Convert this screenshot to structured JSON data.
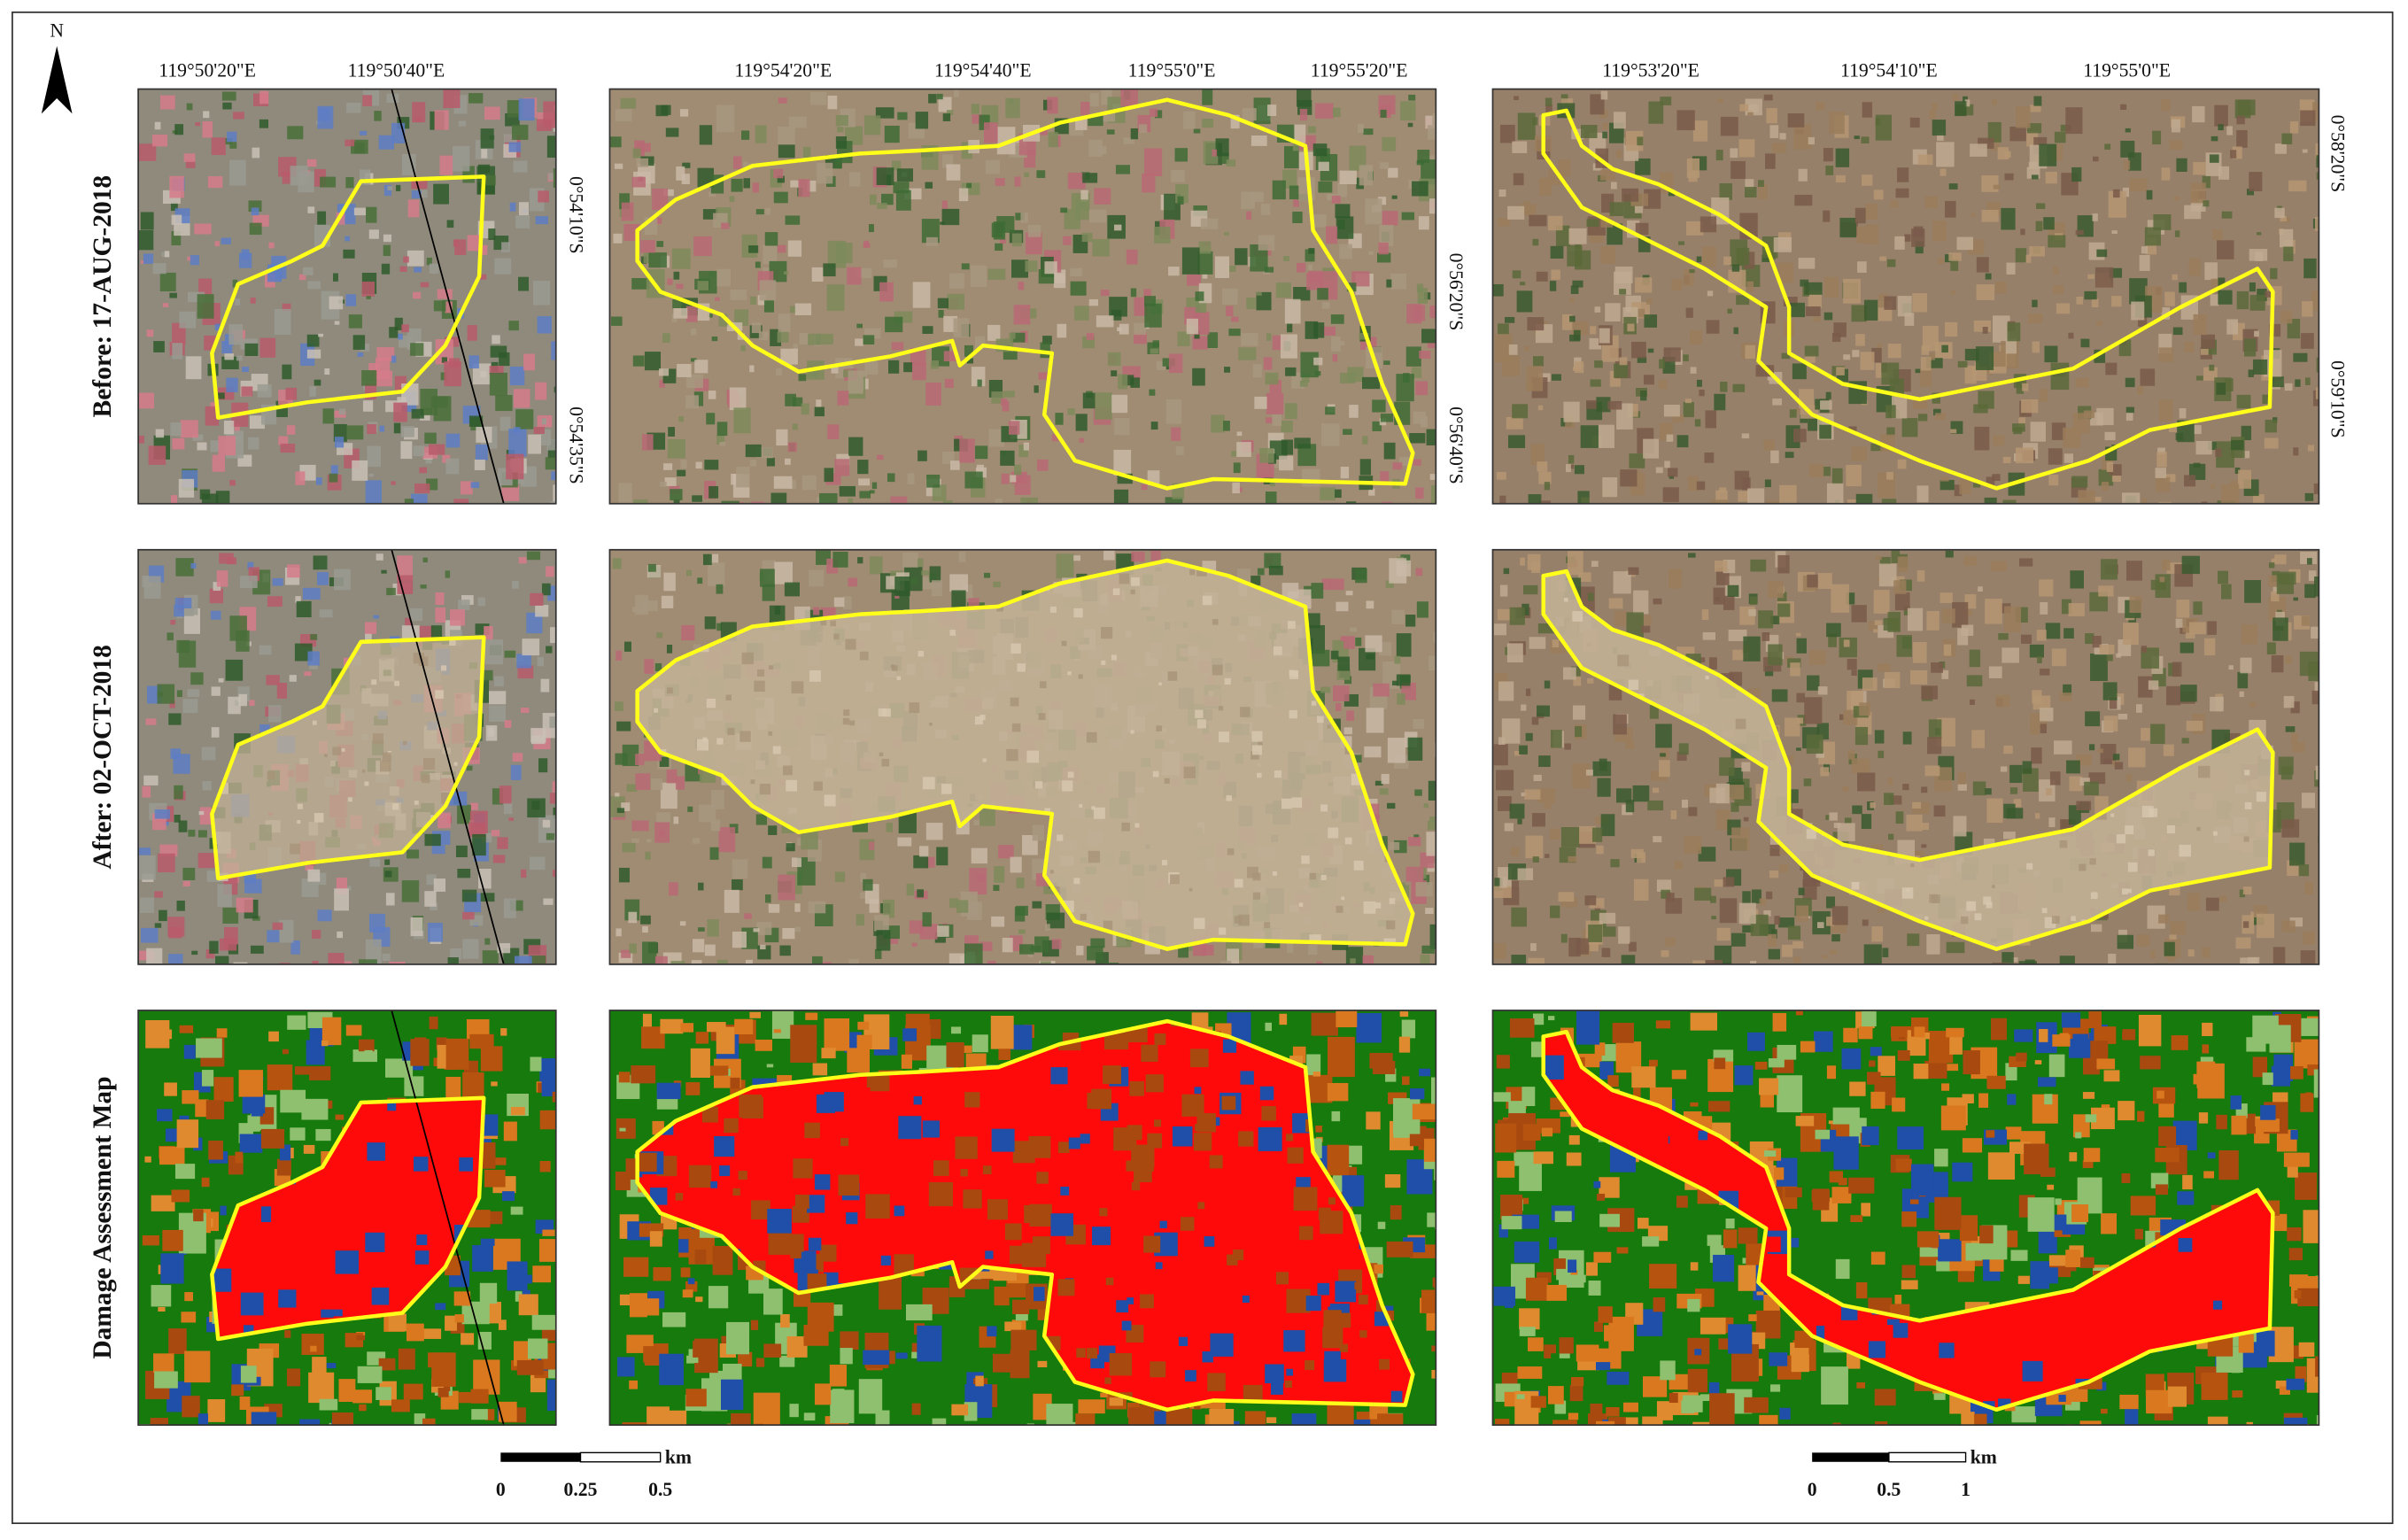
{
  "north_arrow": "N",
  "row_labels": [
    "Before: 17-AUG-2018",
    "After: 02-OCT-2018",
    "Damage Assessment Map"
  ],
  "panels": [
    {
      "lon_labels": [
        "119°50'20\"E",
        "119°50'40\"E"
      ],
      "lat_labels": [
        "0°54'10\"S",
        "0°54'35\"S"
      ]
    },
    {
      "lon_labels": [
        "119°54'20\"E",
        "119°54'40\"E",
        "119°55'0\"E",
        "119°55'20\"E"
      ],
      "lat_labels": [
        "0°56'20\"S",
        "0°56'40\"S"
      ]
    },
    {
      "lon_labels": [
        "119°53'20\"E",
        "119°54'10\"E",
        "119°55'0\"E"
      ],
      "lat_labels": [
        "0°58'20\"S",
        "0°59'10\"S"
      ]
    }
  ],
  "scale_bars": [
    {
      "unit": "km",
      "ticks": [
        "0",
        "0.25",
        "0.5"
      ]
    },
    {
      "unit": "km",
      "ticks": [
        "0",
        "0.5",
        "1"
      ]
    }
  ]
}
